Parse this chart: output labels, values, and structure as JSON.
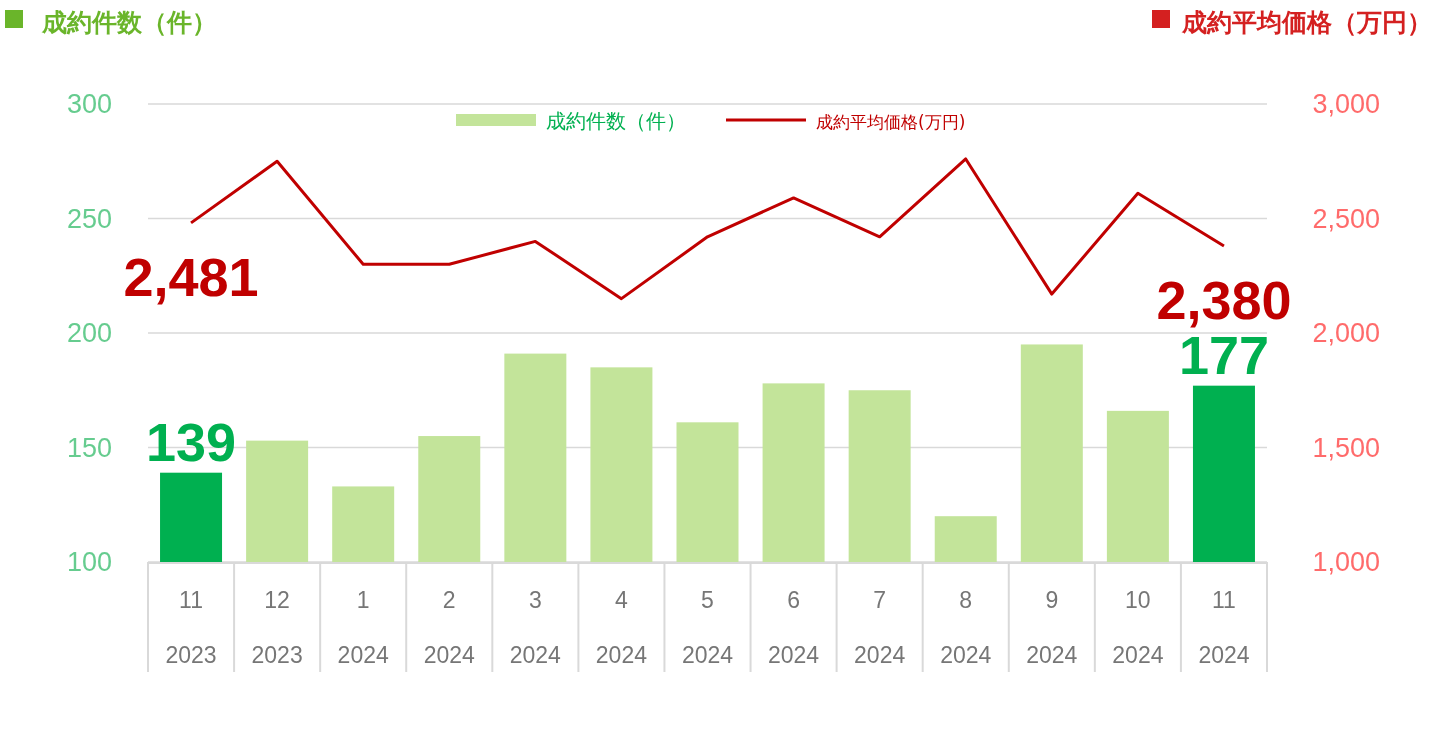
{
  "chart_data": {
    "type": "bar",
    "ylabel": "成約件数（件）",
    "y2label": "成約平均価格（万円）",
    "categories": [
      "11\n2023",
      "12\n2023",
      "1\n2024",
      "2\n2024",
      "3\n2024",
      "4\n2024",
      "5\n2024",
      "6\n2024",
      "7\n2024",
      "8\n2024",
      "9\n2024",
      "10\n2024",
      "11\n2024"
    ],
    "series": [
      {
        "name": "成約件数（件）",
        "color": "#c3e49a",
        "colors": [
          "#00b050",
          "#c3e49a",
          "#c3e49a",
          "#c3e49a",
          "#c3e49a",
          "#c3e49a",
          "#c3e49a",
          "#c3e49a",
          "#c3e49a",
          "#c3e49a",
          "#c3e49a",
          "#c3e49a",
          "#00b050"
        ],
        "values": [
          139,
          153,
          133,
          155,
          191,
          185,
          161,
          178,
          175,
          120,
          195,
          166,
          177
        ],
        "value_labels": [
          "139",
          null,
          null,
          null,
          null,
          null,
          null,
          null,
          null,
          null,
          null,
          null,
          "177"
        ]
      },
      {
        "type": "line",
        "name": "成約平均価格(万円)",
        "color": "#c00000",
        "axis": "y2",
        "values": [
          2481,
          2750,
          2300,
          2300,
          2400,
          2150,
          2420,
          2590,
          2420,
          2760,
          2170,
          2610,
          2380
        ],
        "value_labels": [
          "2,481",
          null,
          null,
          null,
          null,
          null,
          null,
          null,
          null,
          null,
          null,
          null,
          "2,380"
        ]
      }
    ],
    "ylim": [
      100,
      300
    ],
    "yticks": [
      100,
      150,
      200,
      250,
      300
    ],
    "y2lim": [
      1000,
      3000
    ],
    "y2ticks": [
      {
        "value": 1000,
        "label": "1,000"
      },
      {
        "value": 1500,
        "label": "1,500"
      },
      {
        "value": 2000,
        "label": "2,000"
      },
      {
        "value": 2500,
        "label": "2,500"
      },
      {
        "value": 3000,
        "label": "3,000"
      }
    ],
    "grid": "y",
    "legend": "top"
  }
}
